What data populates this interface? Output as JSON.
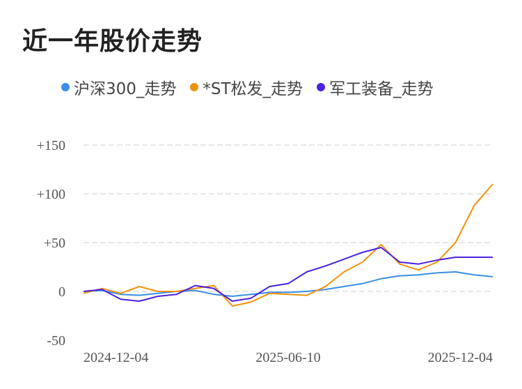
{
  "title": "近一年股价走势",
  "colors": {
    "hs300": "#3a8ee6",
    "stsong": "#f0920a",
    "military": "#4a22e0",
    "grid": "#e6e6e6"
  },
  "chart_data": {
    "type": "line",
    "title": "近一年股价走势",
    "xlabel": "",
    "ylabel": "",
    "ylim": [
      -50,
      150
    ],
    "yticks": [
      "+150",
      "+100",
      "+50",
      "0",
      "-50"
    ],
    "ytick_values": [
      150,
      100,
      50,
      0,
      -50
    ],
    "xticks": [
      "2024-12-04",
      "2025-06-10",
      "2025-12-04"
    ],
    "grid": true,
    "legend_position": "top",
    "x": [
      "2024-12-04",
      "2024-12-20",
      "2025-01-10",
      "2025-01-28",
      "2025-02-14",
      "2025-03-03",
      "2025-03-20",
      "2025-04-07",
      "2025-04-24",
      "2025-05-12",
      "2025-05-29",
      "2025-06-10",
      "2025-06-27",
      "2025-07-15",
      "2025-08-01",
      "2025-08-19",
      "2025-09-05",
      "2025-09-23",
      "2025-10-10",
      "2025-10-28",
      "2025-11-14",
      "2025-11-24",
      "2025-12-04"
    ],
    "series": [
      {
        "name": "沪深300_走势",
        "color": "#3a8ee6",
        "values": [
          0,
          1,
          -3,
          -4,
          -2,
          0,
          1,
          -3,
          -5,
          -3,
          -1,
          -1,
          0,
          2,
          5,
          8,
          13,
          16,
          17,
          19,
          20,
          17,
          15
        ]
      },
      {
        "name": "*ST松发_走势",
        "color": "#f0920a",
        "values": [
          -2,
          3,
          -2,
          5,
          0,
          0,
          3,
          6,
          -15,
          -11,
          -2,
          -3,
          -4,
          5,
          20,
          30,
          48,
          28,
          22,
          30,
          50,
          88,
          110
        ]
      },
      {
        "name": "军工装备_走势",
        "color": "#4a22e0",
        "values": [
          0,
          2,
          -8,
          -10,
          -5,
          -3,
          6,
          3,
          -10,
          -7,
          5,
          8,
          20,
          26,
          33,
          40,
          45,
          30,
          28,
          32,
          35,
          35,
          35
        ]
      }
    ]
  }
}
